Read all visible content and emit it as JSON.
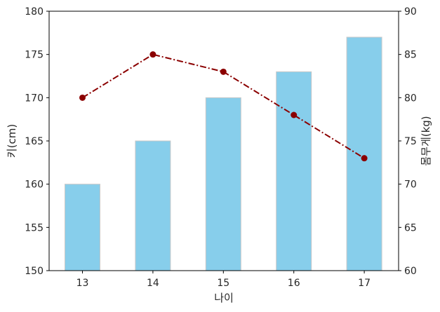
{
  "chart_data": {
    "type": "bar",
    "categories": [
      "13",
      "14",
      "15",
      "16",
      "17"
    ],
    "xlabel": "나이",
    "series": [
      {
        "type": "bar",
        "axis": "left",
        "values": [
          160,
          165,
          170,
          173,
          177
        ],
        "color": "#87ceeb",
        "edge_color": "#c8c8c8"
      },
      {
        "type": "line",
        "axis": "right",
        "values": [
          80,
          85,
          83,
          78,
          73
        ],
        "color": "#8b0000",
        "line_style": "dash-dot",
        "marker": "circle"
      }
    ],
    "y_left": {
      "label": "키(cm)",
      "lim": [
        150,
        180
      ],
      "ticks": [
        "150",
        "155",
        "160",
        "165",
        "170",
        "175",
        "180"
      ]
    },
    "y_right": {
      "label": "몸무게(kg)",
      "lim": [
        60,
        90
      ],
      "ticks": [
        "60",
        "65",
        "70",
        "75",
        "80",
        "85",
        "90"
      ]
    },
    "grid": false,
    "legend": "none"
  }
}
